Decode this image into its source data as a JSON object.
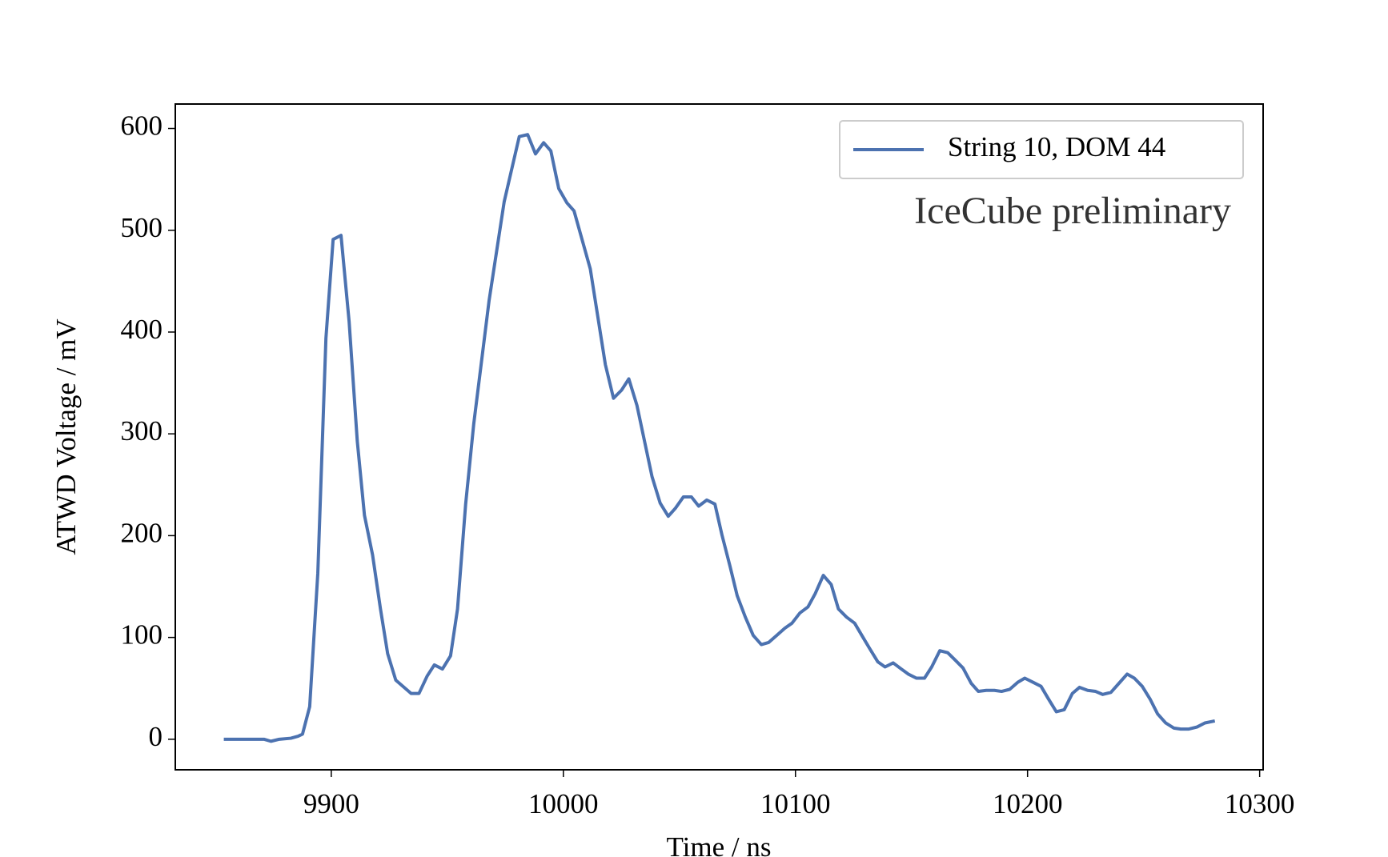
{
  "chart_data": {
    "type": "line",
    "xlabel": "Time / ns",
    "ylabel": "ATWD Voltage / mV",
    "annotation": "IceCube preliminary",
    "legend": "upper right",
    "xlim": [
      9832.8,
      10301.5
    ],
    "ylim": [
      -30,
      624
    ],
    "xticks": [
      9900,
      10000,
      10100,
      10200,
      10300
    ],
    "yticks": [
      0,
      100,
      200,
      300,
      400,
      500,
      600
    ],
    "x": [
      9853.7,
      9861,
      9871,
      9874,
      9877.6,
      9882.6,
      9885.7,
      9887.6,
      9890.7,
      9894.2,
      9897.7,
      9900.8,
      9904.2,
      9907.7,
      9911.2,
      9914.3,
      9917.8,
      9921.2,
      9924.3,
      9927.8,
      9934.4,
      9937.8,
      9941.3,
      9944.4,
      9947.9,
      9951.4,
      9954.4,
      9957.9,
      9961.4,
      9968,
      9974.5,
      9981,
      9984.6,
      9988,
      9991.5,
      9994.6,
      9998,
      10001.5,
      10004.6,
      10011.6,
      10018.1,
      10021.6,
      10025.1,
      10028.2,
      10031.7,
      10038.2,
      10041.7,
      10045.2,
      10048.3,
      10051.7,
      10055.2,
      10058.3,
      10061.8,
      10065.3,
      10068.3,
      10071.8,
      10074.9,
      10078.4,
      10081.8,
      10085.3,
      10088.4,
      10091.9,
      10095.4,
      10098.5,
      10101.9,
      10105.4,
      10108.5,
      10112,
      10115.4,
      10118.5,
      10122,
      10125.5,
      10128.6,
      10132,
      10135.5,
      10138.6,
      10142.1,
      10145.6,
      10148.6,
      10152.1,
      10155.6,
      10158.7,
      10162.2,
      10165.6,
      10168.7,
      10172.2,
      10175.7,
      10178.8,
      10182.2,
      10185.7,
      10188.8,
      10192.3,
      10195.8,
      10198.8,
      10202.3,
      10205.8,
      10208.9,
      10212.4,
      10215.8,
      10219.3,
      10222.4,
      10225.9,
      10229.3,
      10232.4,
      10235.9,
      10239.4,
      10242.9,
      10246,
      10249.4,
      10252.9,
      10256,
      10259.5,
      10263,
      10266,
      10269.5,
      10273,
      10276.4,
      10280.7
    ],
    "series": [
      {
        "name": "String 10, DOM 44",
        "color": "#4c72b0",
        "values": [
          0,
          0,
          0,
          -2,
          0,
          1,
          3,
          5,
          32,
          163,
          394,
          491,
          495,
          410,
          293,
          220,
          181,
          128,
          84,
          58,
          45,
          45,
          62,
          73,
          69,
          82,
          128,
          231,
          310,
          431,
          528,
          592,
          594,
          575,
          586,
          578,
          541,
          527,
          519,
          462,
          368,
          335,
          343,
          354,
          328,
          258,
          232,
          219,
          227,
          238,
          238,
          229,
          235,
          231,
          201,
          170,
          141,
          120,
          102,
          93,
          95,
          102,
          109,
          114,
          124,
          130,
          143,
          161,
          152,
          128,
          120,
          114,
          102,
          89,
          76,
          71,
          75,
          69,
          64,
          60,
          60,
          71,
          87,
          85,
          78,
          70,
          55,
          47,
          48,
          48,
          47,
          49,
          56,
          60,
          56,
          52,
          40,
          27,
          29,
          45,
          51,
          48,
          47,
          44,
          46,
          55,
          64,
          60,
          52,
          39,
          25,
          16,
          11,
          10,
          10,
          12,
          16,
          18
        ]
      }
    ]
  }
}
